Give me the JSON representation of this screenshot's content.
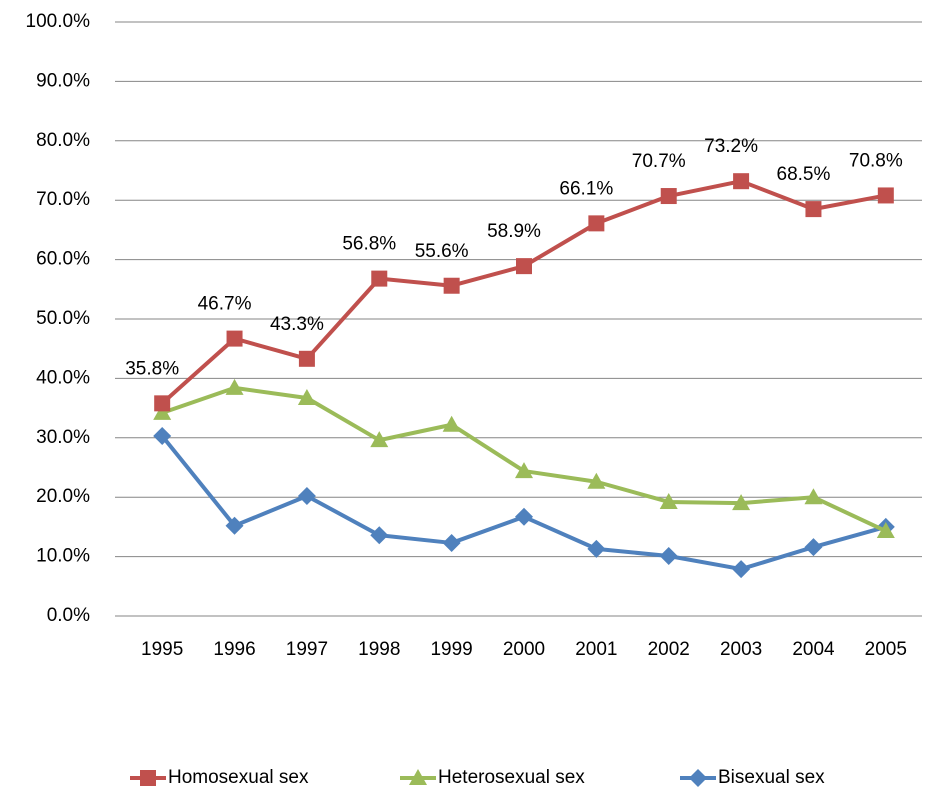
{
  "chart_data": {
    "type": "line",
    "categories": [
      "1995",
      "1996",
      "1997",
      "1998",
      "1999",
      "2000",
      "2001",
      "2002",
      "2003",
      "2004",
      "2005"
    ],
    "series": [
      {
        "name": "Homosexual sex",
        "color": "#c0504d",
        "marker": "square",
        "values": [
          35.8,
          46.7,
          43.3,
          56.8,
          55.6,
          58.9,
          66.1,
          70.7,
          73.2,
          68.5,
          70.8
        ],
        "value_labels": [
          "35.8%",
          "46.7%",
          "43.3%",
          "56.8%",
          "55.6%",
          "58.9%",
          "66.1%",
          "70.7%",
          "73.2%",
          "68.5%",
          "70.8%"
        ]
      },
      {
        "name": "Heterosexual sex",
        "color": "#9bbb59",
        "marker": "triangle",
        "values": [
          34.2,
          38.4,
          36.7,
          29.6,
          32.2,
          24.4,
          22.6,
          19.2,
          19.0,
          20.0,
          14.3
        ]
      },
      {
        "name": "Bisexual sex",
        "color": "#4f81bd",
        "marker": "diamond",
        "values": [
          30.3,
          15.2,
          20.2,
          13.6,
          12.3,
          16.7,
          11.3,
          10.1,
          7.9,
          11.6,
          15.0
        ]
      }
    ],
    "ylim": [
      0,
      100
    ],
    "yticks": [
      {
        "value": 0,
        "label": "0.0%"
      },
      {
        "value": 10,
        "label": "10.0%"
      },
      {
        "value": 20,
        "label": "20.0%"
      },
      {
        "value": 30,
        "label": "30.0%"
      },
      {
        "value": 40,
        "label": "40.0%"
      },
      {
        "value": 50,
        "label": "50.0%"
      },
      {
        "value": 60,
        "label": "60.0%"
      },
      {
        "value": 70,
        "label": "70.0%"
      },
      {
        "value": 80,
        "label": "80.0%"
      },
      {
        "value": 90,
        "label": "90.0%"
      },
      {
        "value": 100,
        "label": "100.0%"
      }
    ],
    "grid": true,
    "legend": "bottom"
  }
}
